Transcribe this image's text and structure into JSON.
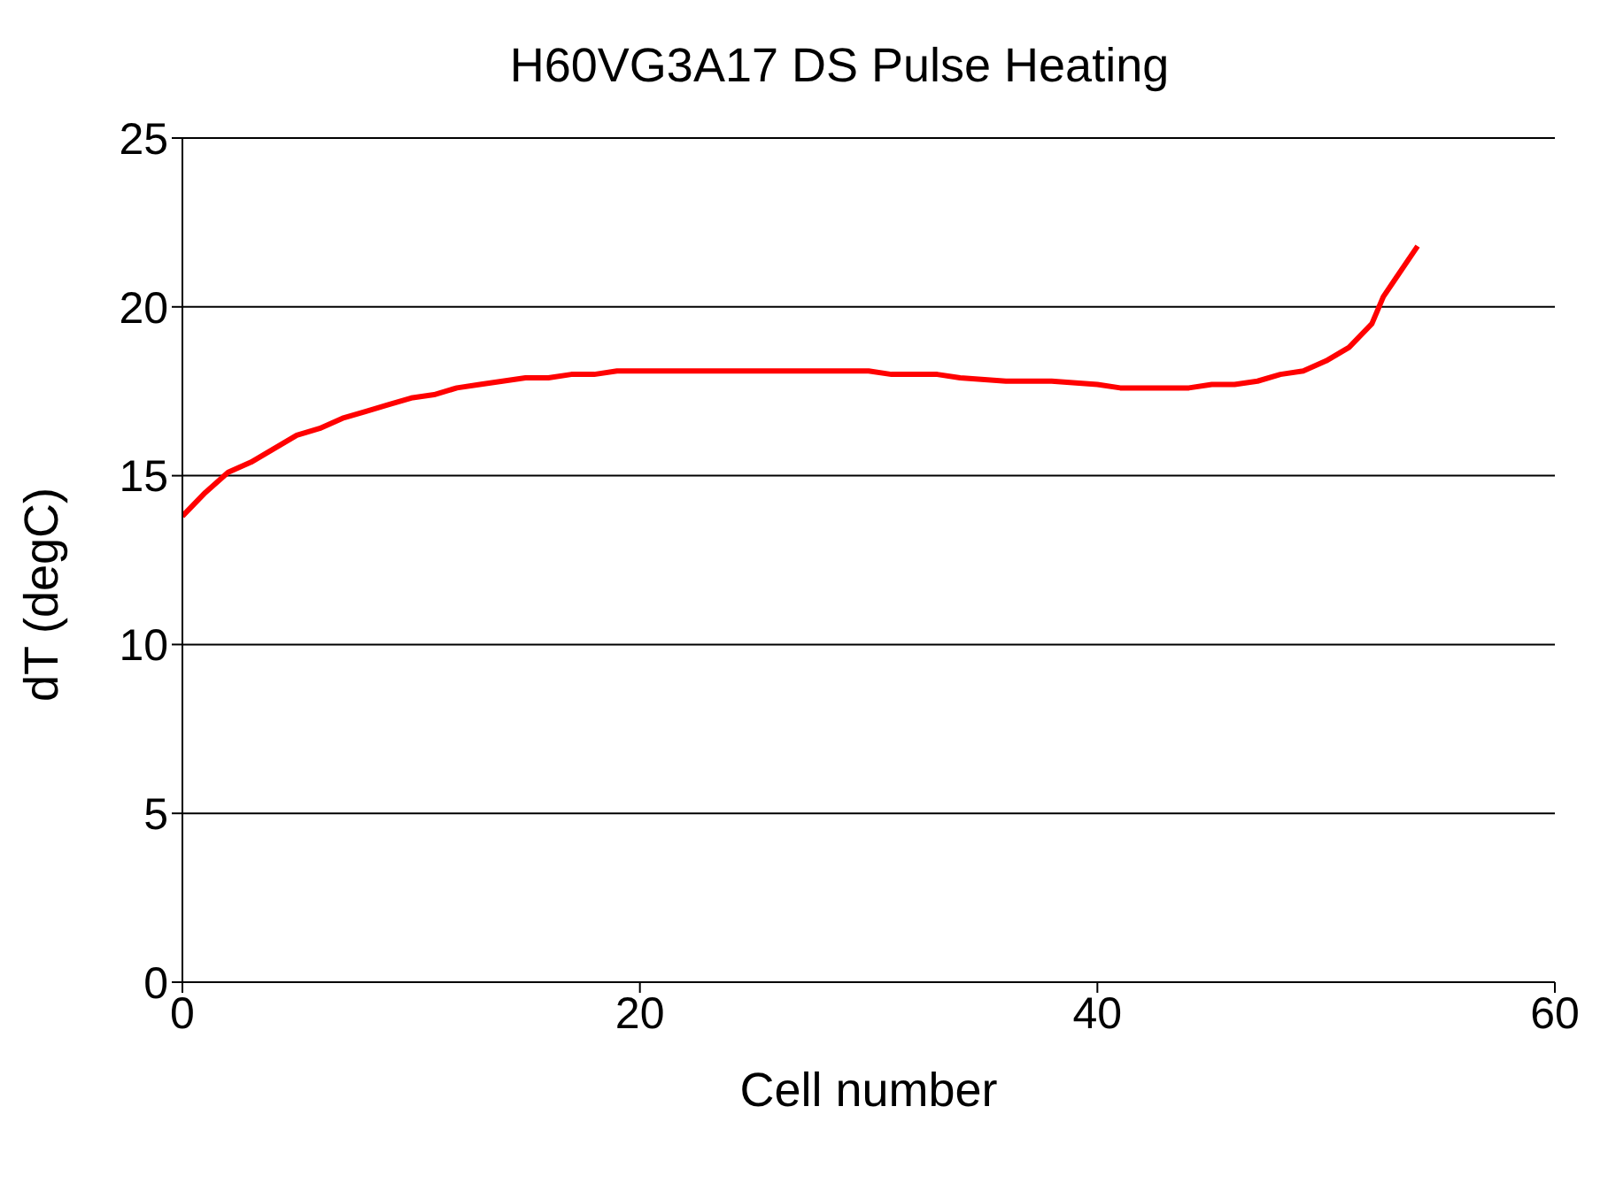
{
  "chart_data": {
    "type": "line",
    "title": "H60VG3A17 DS Pulse Heating",
    "xlabel": "Cell number",
    "ylabel": "dT (degC)",
    "x": [
      0,
      1,
      2,
      3,
      4,
      5,
      6,
      7,
      8,
      9,
      10,
      11,
      12,
      13,
      14,
      15,
      16,
      17,
      18,
      19,
      22,
      26,
      30,
      31,
      33,
      34,
      36,
      38,
      40,
      41,
      43,
      44,
      45,
      46,
      47,
      48,
      49,
      50,
      51,
      52,
      52.5,
      53,
      54
    ],
    "series": [
      {
        "color": "#ff0000",
        "values": [
          13.8,
          14.5,
          15.1,
          15.4,
          15.8,
          16.2,
          16.4,
          16.7,
          16.9,
          17.1,
          17.3,
          17.4,
          17.6,
          17.7,
          17.8,
          17.9,
          17.9,
          18.0,
          18.0,
          18.1,
          18.1,
          18.1,
          18.1,
          18.0,
          18.0,
          17.9,
          17.8,
          17.8,
          17.7,
          17.6,
          17.6,
          17.6,
          17.7,
          17.7,
          17.8,
          18.0,
          18.1,
          18.4,
          18.8,
          19.5,
          20.3,
          20.8,
          21.8
        ]
      }
    ],
    "xlim": [
      0,
      60
    ],
    "xticks": [
      0,
      20,
      40,
      60
    ],
    "ylim": [
      0,
      25
    ],
    "yticks": [
      0,
      5,
      10,
      15,
      20,
      25
    ],
    "grid": "y",
    "legend": false,
    "marker": "none",
    "line_style": "solid"
  }
}
